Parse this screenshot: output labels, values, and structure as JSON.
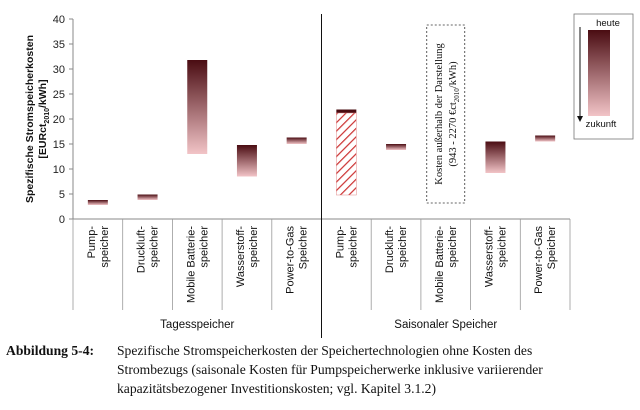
{
  "chart_data": {
    "type": "bar",
    "ylabel_parts": [
      "Spezifische Stromspeicherkosten",
      "[EURct",
      "2010",
      "/kWh]"
    ],
    "ylim": [
      0,
      40
    ],
    "yticks": [
      0,
      5,
      10,
      15,
      20,
      25,
      30,
      35,
      40
    ],
    "grid": false,
    "categories": [
      {
        "label": [
          "Pump-",
          "speicher"
        ],
        "group": "Tagesspeicher",
        "low": 2.8,
        "high": 3.8
      },
      {
        "label": [
          "Druckluft-",
          "speicher"
        ],
        "group": "Tagesspeicher",
        "low": 3.8,
        "high": 4.9
      },
      {
        "label": [
          "Mobile Batterie-",
          "speicher"
        ],
        "group": "Tagesspeicher",
        "low": 13.0,
        "high": 31.8
      },
      {
        "label": [
          "Wasserstoff-",
          "speicher"
        ],
        "group": "Tagesspeicher",
        "low": 8.5,
        "high": 14.8
      },
      {
        "label": [
          "Power-to-Gas",
          "Speicher"
        ],
        "group": "Tagesspeicher",
        "low": 15.0,
        "high": 16.3
      },
      {
        "label": [
          "Pump-",
          "speicher"
        ],
        "group": "Saisonaler Speicher",
        "low": 4.8,
        "high": 21.9,
        "hatched_below": 21.2
      },
      {
        "label": [
          "Druckluft-",
          "speicher"
        ],
        "group": "Saisonaler Speicher",
        "low": 13.8,
        "high": 15.0
      },
      {
        "label": [
          "Mobile Batterie-",
          "speicher"
        ],
        "group": "Saisonaler Speicher",
        "low": null,
        "high": null,
        "note": true
      },
      {
        "label": [
          "Wasserstoff-",
          "speicher"
        ],
        "group": "Saisonaler Speicher",
        "low": 9.2,
        "high": 15.5
      },
      {
        "label": [
          "Power-to-Gas",
          "Speicher"
        ],
        "group": "Saisonaler Speicher",
        "low": 15.5,
        "high": 16.7
      }
    ],
    "groups": [
      "Tagesspeicher",
      "Saisonaler Speicher"
    ],
    "note_lines": [
      "Kosten außerhalb der Darstellung",
      "(943 - 2270 €ct",
      "2010",
      "/kWh)"
    ],
    "legend": {
      "top": "heute",
      "bottom": "zukunft"
    },
    "colors": {
      "dark": "#4a0c12",
      "light": "#f2c4c7",
      "hatch": "#cc3333",
      "axis": "#888888"
    }
  },
  "caption": {
    "label": "Abbildung 5-4:",
    "lines": [
      "Spezifische Stromspeicherkosten der Speichertechnologien ohne Kosten des",
      "Strombezugs (saisonale Kosten für Pumpspeicherwerke inklusive variierender",
      "kapazitätsbezogener Investitionskosten; vgl. Kapitel 3.1.2)"
    ]
  }
}
